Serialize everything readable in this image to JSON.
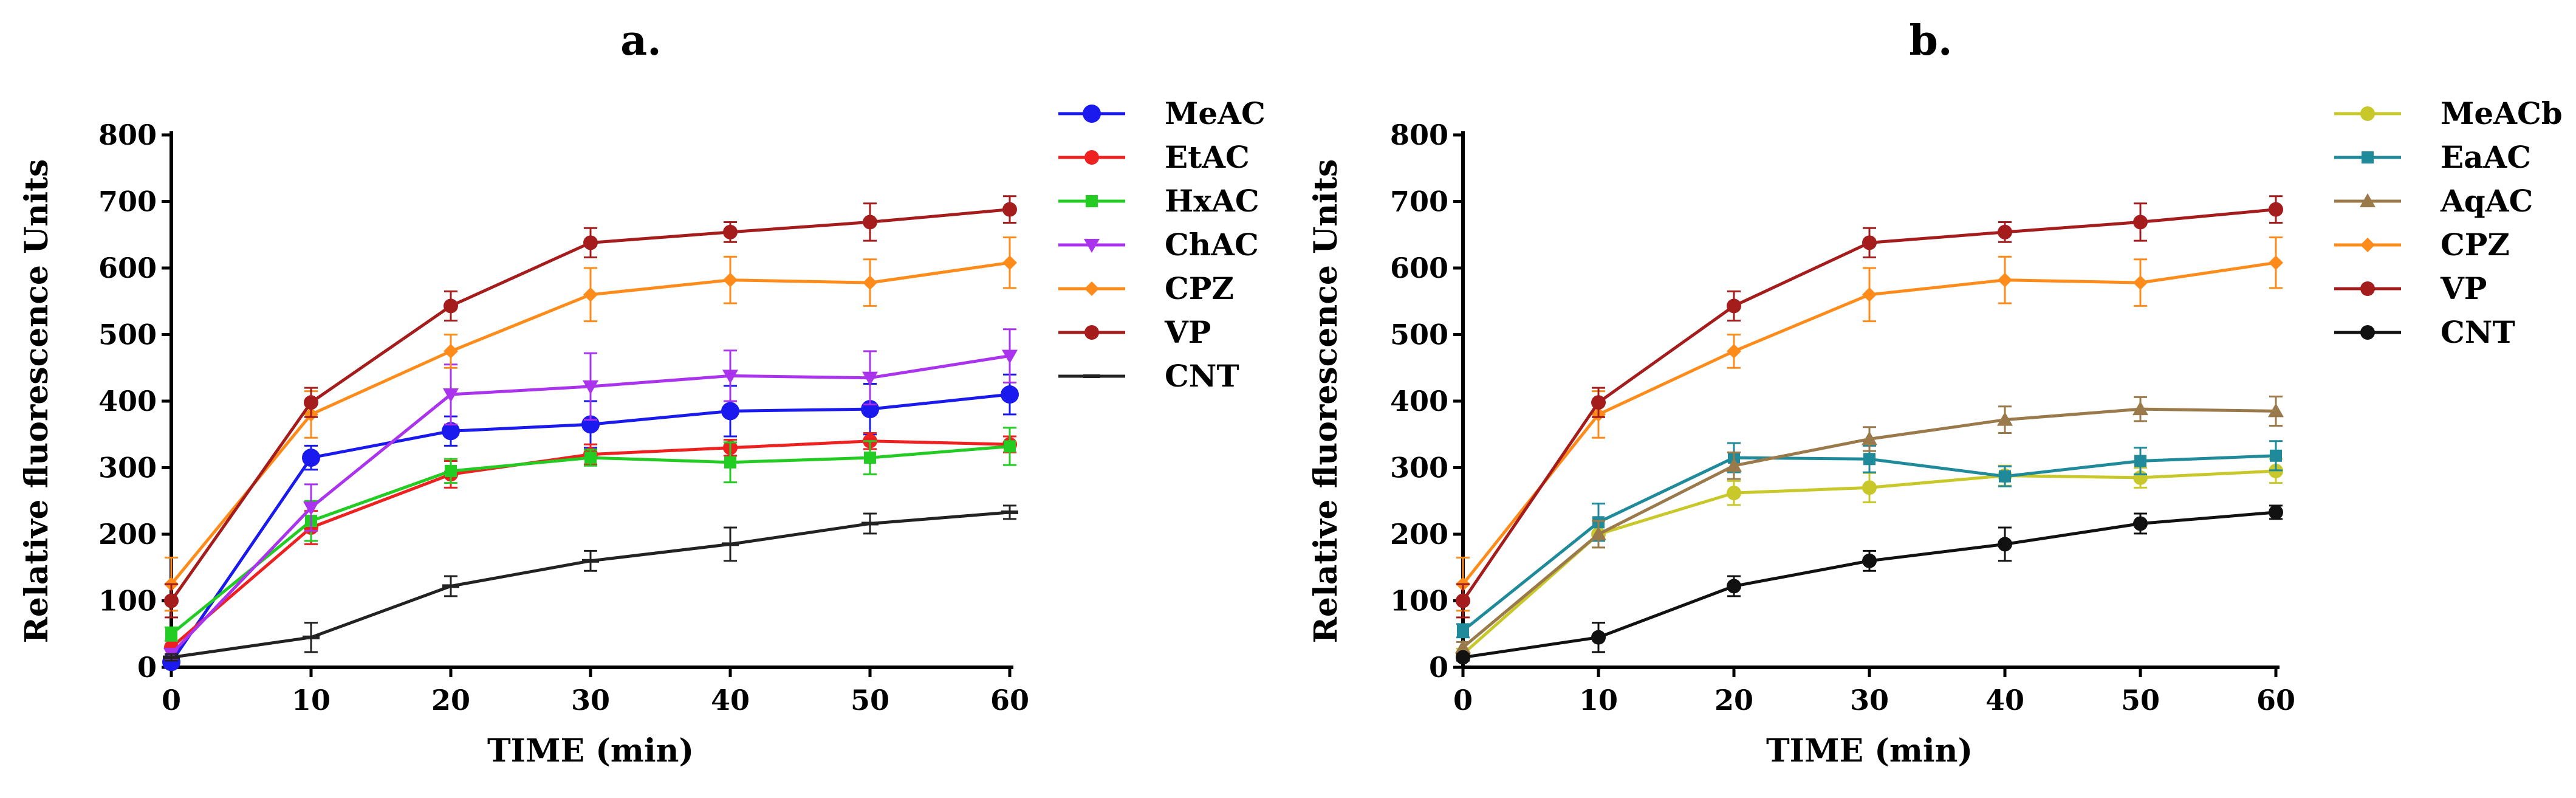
{
  "chart_data": [
    {
      "type": "line",
      "title": "a.",
      "xlabel": "TIME (min)",
      "ylabel": "Relative fluorescence Units",
      "xlim": [
        0,
        60
      ],
      "ylim": [
        0,
        800
      ],
      "x_ticks": [
        "0",
        "10",
        "20",
        "30",
        "40",
        "50",
        "60"
      ],
      "y_ticks": [
        "0",
        "100",
        "200",
        "300",
        "400",
        "500",
        "600",
        "700",
        "800"
      ],
      "legend_position": "right",
      "x": [
        0,
        10,
        20,
        30,
        40,
        50,
        60
      ],
      "series": [
        {
          "name": "MeAC",
          "color": "#1a1aee",
          "marker": "circle-large",
          "values": [
            8,
            315,
            355,
            365,
            385,
            388,
            410
          ],
          "errors": [
            5,
            18,
            22,
            35,
            38,
            38,
            30
          ]
        },
        {
          "name": "EtAC",
          "color": "#ee2020",
          "marker": "circle",
          "values": [
            30,
            210,
            290,
            320,
            330,
            340,
            335
          ],
          "errors": [
            10,
            25,
            20,
            15,
            12,
            12,
            12
          ]
        },
        {
          "name": "HxAC",
          "color": "#22cc22",
          "marker": "square",
          "values": [
            50,
            220,
            295,
            315,
            308,
            315,
            332
          ],
          "errors": [
            10,
            30,
            18,
            12,
            30,
            25,
            28
          ]
        },
        {
          "name": "ChAC",
          "color": "#aa33ee",
          "marker": "triangle-down",
          "values": [
            20,
            240,
            410,
            422,
            438,
            435,
            468
          ],
          "errors": [
            8,
            35,
            45,
            50,
            38,
            40,
            40
          ]
        },
        {
          "name": "CPZ",
          "color": "#ff8c1a",
          "marker": "diamond",
          "values": [
            125,
            380,
            475,
            560,
            582,
            578,
            608
          ],
          "errors": [
            40,
            35,
            25,
            40,
            35,
            35,
            38
          ]
        },
        {
          "name": "VP",
          "color": "#a51c1c",
          "marker": "circle",
          "values": [
            100,
            398,
            543,
            638,
            654,
            669,
            688
          ],
          "errors": [
            25,
            22,
            22,
            22,
            15,
            28,
            20
          ]
        },
        {
          "name": "CNT",
          "color": "#222222",
          "marker": "dash",
          "values": [
            15,
            45,
            122,
            160,
            185,
            216,
            233
          ],
          "errors": [
            5,
            22,
            15,
            15,
            25,
            15,
            10
          ]
        }
      ]
    },
    {
      "type": "line",
      "title": "b.",
      "xlabel": "TIME (min)",
      "ylabel": "Relative fluorescence Units",
      "xlim": [
        0,
        60
      ],
      "ylim": [
        0,
        800
      ],
      "x_ticks": [
        "0",
        "10",
        "20",
        "30",
        "40",
        "50",
        "60"
      ],
      "y_ticks": [
        "0",
        "100",
        "200",
        "300",
        "400",
        "500",
        "600",
        "700",
        "800"
      ],
      "legend_position": "right",
      "x": [
        0,
        10,
        20,
        30,
        40,
        50,
        60
      ],
      "series": [
        {
          "name": "MeACb",
          "color": "#c8c82a",
          "marker": "circle",
          "values": [
            20,
            200,
            262,
            270,
            288,
            285,
            295
          ],
          "errors": [
            8,
            20,
            18,
            22,
            15,
            15,
            18
          ]
        },
        {
          "name": "EaAC",
          "color": "#1f8a9a",
          "marker": "square",
          "values": [
            55,
            218,
            315,
            313,
            287,
            310,
            318
          ],
          "errors": [
            10,
            28,
            22,
            20,
            15,
            20,
            22
          ]
        },
        {
          "name": "AqAC",
          "color": "#9a7a4a",
          "marker": "triangle-up",
          "values": [
            30,
            200,
            303,
            343,
            372,
            388,
            385
          ],
          "errors": [
            8,
            20,
            20,
            18,
            20,
            18,
            22
          ]
        },
        {
          "name": "CPZ",
          "color": "#ff8c1a",
          "marker": "diamond",
          "values": [
            125,
            380,
            475,
            560,
            582,
            578,
            608
          ],
          "errors": [
            40,
            35,
            25,
            40,
            35,
            35,
            38
          ]
        },
        {
          "name": "VP",
          "color": "#a51c1c",
          "marker": "circle",
          "values": [
            100,
            398,
            543,
            638,
            654,
            669,
            688
          ],
          "errors": [
            25,
            22,
            22,
            22,
            15,
            28,
            20
          ]
        },
        {
          "name": "CNT",
          "color": "#111111",
          "marker": "circle",
          "values": [
            15,
            45,
            122,
            160,
            185,
            216,
            233
          ],
          "errors": [
            5,
            22,
            15,
            15,
            25,
            15,
            10
          ]
        }
      ]
    }
  ]
}
